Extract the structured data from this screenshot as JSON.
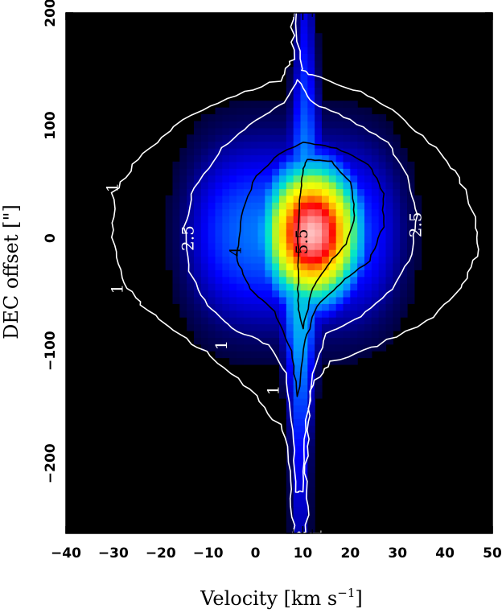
{
  "chart_data": {
    "type": "heatmap",
    "title": "",
    "xlabel": "Velocity [km s",
    "xlabel_sup": "−1",
    "xlabel_end": "]",
    "ylabel": "DEC offset [\"]",
    "xlim": [
      -40,
      50
    ],
    "ylim": [
      -262,
      200
    ],
    "x_ticks": [
      -40,
      -30,
      -20,
      -10,
      0,
      10,
      20,
      30,
      40,
      50
    ],
    "x_tick_labels": [
      "−40",
      "−30",
      "−20",
      "−10",
      "0",
      "10",
      "20",
      "30",
      "40",
      "50"
    ],
    "y_ticks": [
      -200,
      -100,
      0,
      100,
      200
    ],
    "y_tick_labels": [
      "−200",
      "−100",
      "0",
      "100",
      "200"
    ],
    "colormap": [
      "#000000",
      "#000066",
      "#0000ff",
      "#0099ff",
      "#00e5cc",
      "#a6f22e",
      "#ffff00",
      "#ffa500",
      "#ff0000",
      "#ff8080",
      "#ffffff"
    ],
    "emission_peak": {
      "x": 12,
      "y": 5
    },
    "contours": [
      {
        "level": "1",
        "color": "#ffffff",
        "label_positions": [
          {
            "x": -30,
            "y": 45
          },
          {
            "x": -29,
            "y": -45
          },
          {
            "x": -7,
            "y": -95
          },
          {
            "x": 4,
            "y": -135
          },
          {
            "x": 13,
            "y": -262
          }
        ]
      },
      {
        "level": "2.5",
        "color": "#ffffff",
        "label_positions": [
          {
            "x": -14,
            "y": 0
          },
          {
            "x": 34,
            "y": 12
          }
        ]
      },
      {
        "level": "4",
        "color": "#000000",
        "label_positions": [
          {
            "x": -4,
            "y": -12
          }
        ]
      },
      {
        "level": "5.5",
        "color": "#000000",
        "label_positions": [
          {
            "x": 10,
            "y": -3
          }
        ]
      }
    ]
  }
}
